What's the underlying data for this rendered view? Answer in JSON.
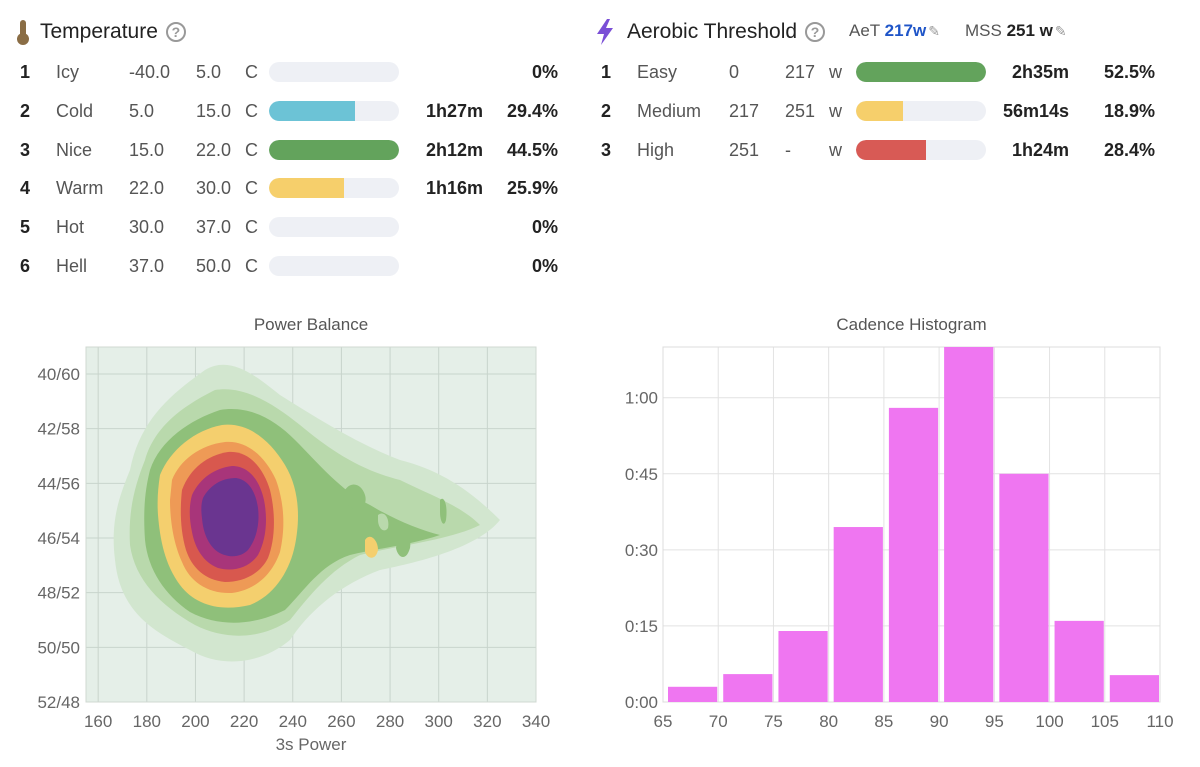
{
  "temperature": {
    "title": "Temperature",
    "icon": "thermometer-icon",
    "zones": [
      {
        "num": "1",
        "name": "Icy",
        "min": "-40.0",
        "max": "5.0",
        "unit": "C",
        "time": "",
        "pct": "0%",
        "fill": 0,
        "color": "#6cc3d6"
      },
      {
        "num": "2",
        "name": "Cold",
        "min": "5.0",
        "max": "15.0",
        "unit": "C",
        "time": "1h27m",
        "pct": "29.4%",
        "fill": 0.66,
        "color": "#6cc3d6"
      },
      {
        "num": "3",
        "name": "Nice",
        "min": "15.0",
        "max": "22.0",
        "unit": "C",
        "time": "2h12m",
        "pct": "44.5%",
        "fill": 1.0,
        "color": "#63a35c"
      },
      {
        "num": "4",
        "name": "Warm",
        "min": "22.0",
        "max": "30.0",
        "unit": "C",
        "time": "1h16m",
        "pct": "25.9%",
        "fill": 0.58,
        "color": "#f6cf6b"
      },
      {
        "num": "5",
        "name": "Hot",
        "min": "30.0",
        "max": "37.0",
        "unit": "C",
        "time": "",
        "pct": "0%",
        "fill": 0,
        "color": "#e58a4a"
      },
      {
        "num": "6",
        "name": "Hell",
        "min": "37.0",
        "max": "50.0",
        "unit": "C",
        "time": "",
        "pct": "0%",
        "fill": 0,
        "color": "#d85a55"
      }
    ]
  },
  "aerobic": {
    "title": "Aerobic Threshold",
    "icon": "lightning-icon",
    "aet_label": "AeT",
    "aet_value": "217w",
    "mss_label": "MSS",
    "mss_value": "251 w",
    "zones": [
      {
        "num": "1",
        "name": "Easy",
        "min": "0",
        "max": "217",
        "unit": "w",
        "time": "2h35m",
        "pct": "52.5%",
        "fill": 1.0,
        "color": "#63a35c"
      },
      {
        "num": "2",
        "name": "Medium",
        "min": "217",
        "max": "251",
        "unit": "w",
        "time": "56m14s",
        "pct": "18.9%",
        "fill": 0.36,
        "color": "#f6cf6b"
      },
      {
        "num": "3",
        "name": "High",
        "min": "251",
        "max": "-",
        "unit": "w",
        "time": "1h24m",
        "pct": "28.4%",
        "fill": 0.54,
        "color": "#d85a55"
      }
    ]
  },
  "power_balance": {
    "title": "Power Balance",
    "xlabel": "3s Power",
    "x_ticks": [
      "160",
      "180",
      "200",
      "220",
      "240",
      "260",
      "280",
      "300",
      "320",
      "340"
    ],
    "y_ticks": [
      "40/60",
      "42/58",
      "44/56",
      "46/54",
      "48/52",
      "50/50",
      "52/48"
    ]
  },
  "chart_data": {
    "type": "bar",
    "title": "Cadence Histogram",
    "x_ticks": [
      "65",
      "70",
      "75",
      "80",
      "85",
      "90",
      "95",
      "100",
      "105",
      "110"
    ],
    "y_ticks": [
      "0:00",
      "0:15",
      "0:30",
      "0:45",
      "1:00"
    ],
    "categories": [
      "65-70",
      "70-75",
      "75-80",
      "80-85",
      "85-90",
      "90-95",
      "95-100",
      "100-105",
      "105-110"
    ],
    "values_minutes": [
      3,
      5.5,
      14,
      34.5,
      58,
      70,
      45,
      16,
      5.3
    ],
    "ylim_minutes": [
      0,
      70
    ],
    "color": "#ef76f1"
  }
}
